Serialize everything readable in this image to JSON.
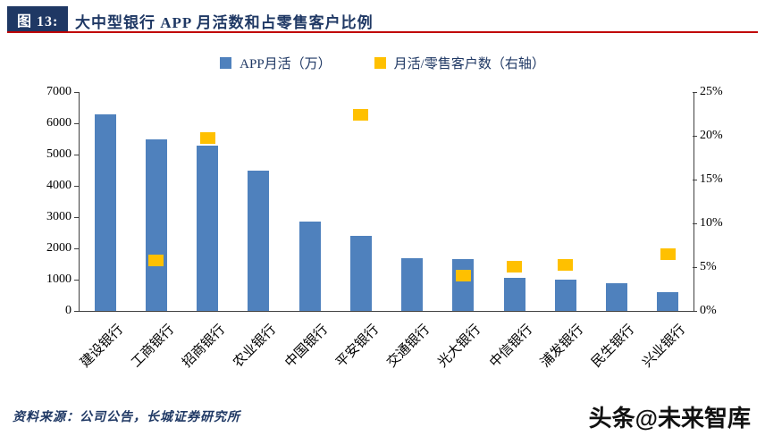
{
  "header": {
    "figure_label": "图 13:",
    "title": "大中型银行 APP 月活数和占零售客户比例"
  },
  "legend": [
    {
      "label": "APP月活（万）",
      "color": "#4F81BD",
      "icon": "bar-series-swatch"
    },
    {
      "label": "月活/零售客户数（右轴）",
      "color": "#FFC000",
      "icon": "ratio-series-swatch"
    }
  ],
  "chart_data": {
    "type": "bar",
    "title": "大中型银行 APP 月活数和占零售客户比例",
    "categories": [
      "建设银行",
      "工商银行",
      "招商银行",
      "农业银行",
      "中国银行",
      "平安银行",
      "交通银行",
      "光大银行",
      "中信银行",
      "浦发银行",
      "民生银行",
      "兴业银行"
    ],
    "series": [
      {
        "name": "APP月活（万）",
        "type": "bar",
        "axis": "left",
        "color": "#4F81BD",
        "values": [
          6300,
          5500,
          5300,
          4500,
          2850,
          2400,
          1700,
          1650,
          1050,
          1000,
          900,
          600
        ]
      },
      {
        "name": "月活/零售客户数（右轴）",
        "type": "point",
        "axis": "right",
        "color": "#FFC000",
        "values": [
          null,
          5.8,
          19.7,
          null,
          null,
          22.4,
          null,
          4.0,
          5.1,
          5.3,
          null,
          6.5
        ]
      }
    ],
    "left_axis": {
      "min": 0,
      "max": 7000,
      "tick_values": [
        0,
        1000,
        2000,
        3000,
        4000,
        5000,
        6000,
        7000
      ],
      "tick_labels": [
        "0",
        "1000",
        "2000",
        "3000",
        "4000",
        "5000",
        "6000",
        "7000"
      ]
    },
    "right_axis": {
      "min": 0,
      "max": 25,
      "tick_values": [
        0,
        5,
        10,
        15,
        20,
        25
      ],
      "tick_labels": [
        "0%",
        "5%",
        "10%",
        "15%",
        "20%",
        "25%"
      ]
    },
    "grid": false,
    "legend_position": "top"
  },
  "footer": {
    "source": "资料来源：公司公告，长城证券研究所"
  },
  "watermark": "头条@未来智库",
  "colors": {
    "accent_navy": "#1F3864",
    "rule_red": "#C00000",
    "bar_blue": "#4F81BD",
    "marker_yellow": "#FFC000"
  }
}
